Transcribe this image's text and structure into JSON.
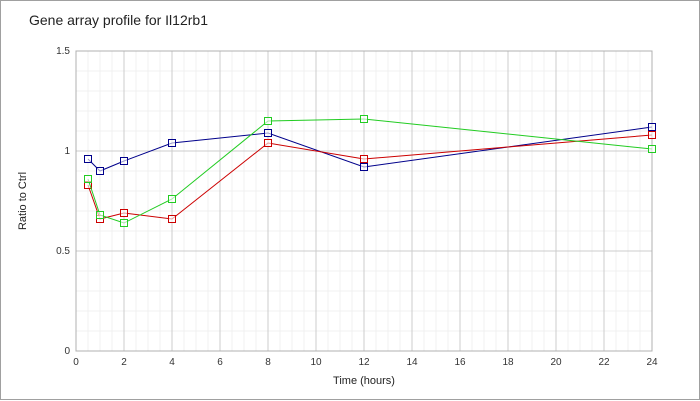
{
  "chart_data": {
    "type": "line",
    "title": "Gene array profile for Il12rb1",
    "xlabel": "Time (hours)",
    "ylabel": "Ratio to Ctrl",
    "xlim": [
      0,
      24
    ],
    "ylim": [
      0,
      1.5
    ],
    "x_ticks": [
      0,
      2,
      4,
      6,
      8,
      10,
      12,
      14,
      16,
      18,
      20,
      22,
      24
    ],
    "y_ticks": [
      0,
      0.5,
      1,
      1.5
    ],
    "y_tick_labels": [
      "0",
      "0.5",
      "1",
      "1.5"
    ],
    "grid": true,
    "series": [
      {
        "color": "#00008b",
        "x": [
          0.5,
          1,
          2,
          4,
          8,
          12,
          24
        ],
        "y": [
          0.96,
          0.9,
          0.95,
          1.04,
          1.09,
          0.92,
          1.12
        ]
      },
      {
        "color": "#cc0000",
        "x": [
          0.5,
          1,
          2,
          4,
          8,
          12,
          24
        ],
        "y": [
          0.83,
          0.66,
          0.69,
          0.66,
          1.04,
          0.96,
          1.08
        ]
      },
      {
        "color": "#22cc22",
        "x": [
          0.5,
          1,
          2,
          4,
          8,
          12,
          24
        ],
        "y": [
          0.86,
          0.68,
          0.64,
          0.76,
          1.15,
          1.16,
          1.01
        ]
      }
    ]
  }
}
